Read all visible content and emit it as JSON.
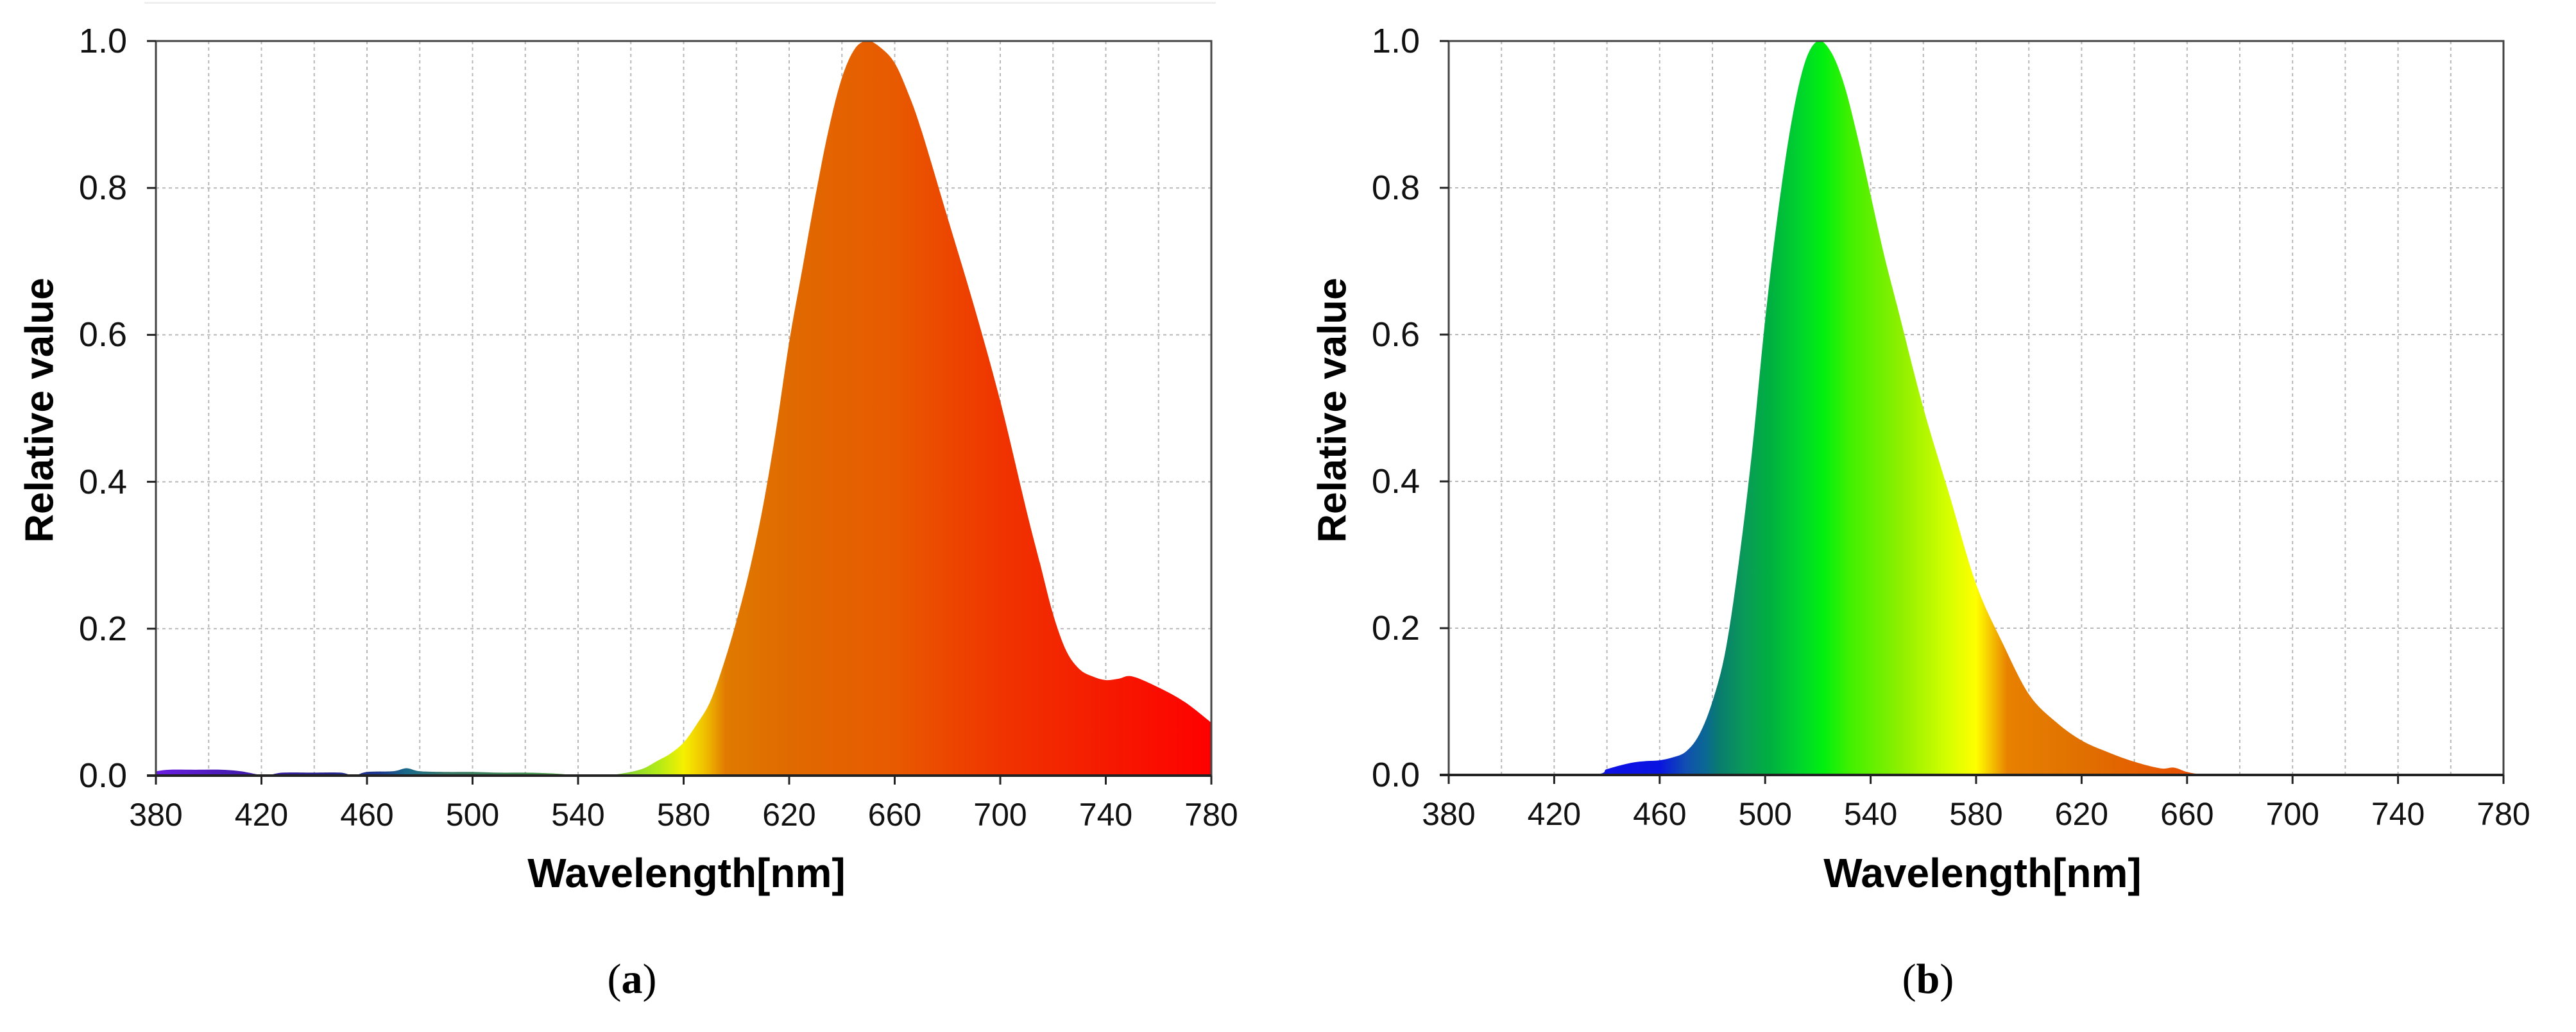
{
  "figure": {
    "panels": [
      {
        "id": "a",
        "caption_letter": "a",
        "ylabel": "Relative value",
        "xlabel": "Wavelength[nm]"
      },
      {
        "id": "b",
        "caption_letter": "b",
        "ylabel": "Relative value",
        "xlabel": "Wavelength[nm]"
      }
    ]
  },
  "chart_data": [
    {
      "type": "area",
      "panel": "(a)",
      "title": "",
      "xlabel": "Wavelength[nm]",
      "ylabel": "Relative value",
      "xlim": [
        380,
        780
      ],
      "ylim": [
        0,
        1.0
      ],
      "xticks": [
        380,
        420,
        460,
        500,
        540,
        580,
        620,
        660,
        700,
        740,
        780
      ],
      "yticks": [
        "0.0",
        "0.2",
        "0.4",
        "0.6",
        "0.8",
        "1.0"
      ],
      "grid": true,
      "fill": "spectral-color gradient",
      "peak_wavelength": 650,
      "x": [
        380,
        385,
        395,
        405,
        412,
        418,
        422,
        428,
        440,
        450,
        455,
        460,
        470,
        475,
        480,
        490,
        500,
        510,
        520,
        530,
        538,
        545,
        550,
        555,
        560,
        565,
        570,
        575,
        580,
        585,
        590,
        595,
        600,
        605,
        610,
        615,
        620,
        625,
        630,
        635,
        640,
        645,
        650,
        655,
        660,
        665,
        670,
        680,
        690,
        700,
        710,
        715,
        720,
        725,
        730,
        735,
        740,
        745,
        750,
        760,
        770,
        780
      ],
      "values": [
        0.006,
        0.008,
        0.008,
        0.008,
        0.006,
        0.002,
        0.0,
        0.004,
        0.004,
        0.004,
        0.0,
        0.005,
        0.006,
        0.01,
        0.006,
        0.005,
        0.005,
        0.004,
        0.004,
        0.003,
        0.001,
        0.0,
        0.0,
        0.002,
        0.005,
        0.01,
        0.02,
        0.03,
        0.045,
        0.07,
        0.1,
        0.15,
        0.21,
        0.28,
        0.365,
        0.47,
        0.59,
        0.69,
        0.79,
        0.88,
        0.95,
        0.99,
        1.0,
        0.99,
        0.97,
        0.93,
        0.88,
        0.76,
        0.64,
        0.51,
        0.36,
        0.29,
        0.22,
        0.17,
        0.145,
        0.135,
        0.13,
        0.132,
        0.135,
        0.12,
        0.1,
        0.072
      ],
      "gradient": [
        {
          "nm": 380,
          "color": "#6a1fe0"
        },
        {
          "nm": 420,
          "color": "#3a1aa0"
        },
        {
          "nm": 445,
          "color": "#22208a"
        },
        {
          "nm": 465,
          "color": "#1e3a8e"
        },
        {
          "nm": 475,
          "color": "#1a6a8a"
        },
        {
          "nm": 490,
          "color": "#3a7a6a"
        },
        {
          "nm": 520,
          "color": "#3d8a4d"
        },
        {
          "nm": 555,
          "color": "#7acc3a"
        },
        {
          "nm": 570,
          "color": "#b0ea18"
        },
        {
          "nm": 580,
          "color": "#f5f000"
        },
        {
          "nm": 588,
          "color": "#f0c000"
        },
        {
          "nm": 596,
          "color": "#e07a00"
        },
        {
          "nm": 620,
          "color": "#e06a00"
        },
        {
          "nm": 660,
          "color": "#e85a00"
        },
        {
          "nm": 700,
          "color": "#f03400"
        },
        {
          "nm": 740,
          "color": "#f51a00"
        },
        {
          "nm": 780,
          "color": "#ff0000"
        }
      ]
    },
    {
      "type": "area",
      "panel": "(b)",
      "title": "",
      "xlabel": "Wavelength[nm]",
      "ylabel": "Relative value",
      "xlim": [
        380,
        780
      ],
      "ylim": [
        0,
        1.0
      ],
      "xticks": [
        380,
        420,
        460,
        500,
        540,
        580,
        620,
        660,
        700,
        740,
        780
      ],
      "yticks": [
        "0.0",
        "0.2",
        "0.4",
        "0.6",
        "0.8",
        "1.0"
      ],
      "grid": true,
      "fill": "spectral-color gradient",
      "peak_wavelength": 520,
      "x": [
        380,
        432,
        440,
        445,
        450,
        455,
        460,
        465,
        470,
        475,
        480,
        485,
        490,
        495,
        500,
        505,
        510,
        515,
        520,
        525,
        530,
        535,
        540,
        545,
        550,
        560,
        570,
        580,
        590,
        600,
        610,
        620,
        630,
        640,
        650,
        655,
        660,
        665,
        670,
        780
      ],
      "values": [
        0.0,
        0.0,
        0.008,
        0.013,
        0.017,
        0.019,
        0.02,
        0.024,
        0.032,
        0.055,
        0.1,
        0.17,
        0.29,
        0.44,
        0.62,
        0.77,
        0.89,
        0.97,
        1.0,
        0.985,
        0.94,
        0.87,
        0.79,
        0.71,
        0.64,
        0.5,
        0.38,
        0.26,
        0.18,
        0.11,
        0.073,
        0.047,
        0.031,
        0.018,
        0.009,
        0.01,
        0.004,
        0.001,
        0.0,
        0.0
      ],
      "gradient": [
        {
          "nm": 430,
          "color": "#1010e8"
        },
        {
          "nm": 460,
          "color": "#0a14e0"
        },
        {
          "nm": 470,
          "color": "#1050b0"
        },
        {
          "nm": 478,
          "color": "#0a6a90"
        },
        {
          "nm": 482,
          "color": "#0a7a70"
        },
        {
          "nm": 492,
          "color": "#0a9a58"
        },
        {
          "nm": 502,
          "color": "#00b040"
        },
        {
          "nm": 512,
          "color": "#00d030"
        },
        {
          "nm": 522,
          "color": "#00f010"
        },
        {
          "nm": 532,
          "color": "#40f000"
        },
        {
          "nm": 552,
          "color": "#90f000"
        },
        {
          "nm": 570,
          "color": "#d8ff00"
        },
        {
          "nm": 580,
          "color": "#ffff00"
        },
        {
          "nm": 586,
          "color": "#f5c000"
        },
        {
          "nm": 592,
          "color": "#e88000"
        },
        {
          "nm": 620,
          "color": "#e07000"
        },
        {
          "nm": 660,
          "color": "#e85000"
        },
        {
          "nm": 780,
          "color": "#e85000"
        }
      ]
    }
  ],
  "style": {
    "grid_color": "#b8b8b8",
    "axis_color": "#444444"
  }
}
